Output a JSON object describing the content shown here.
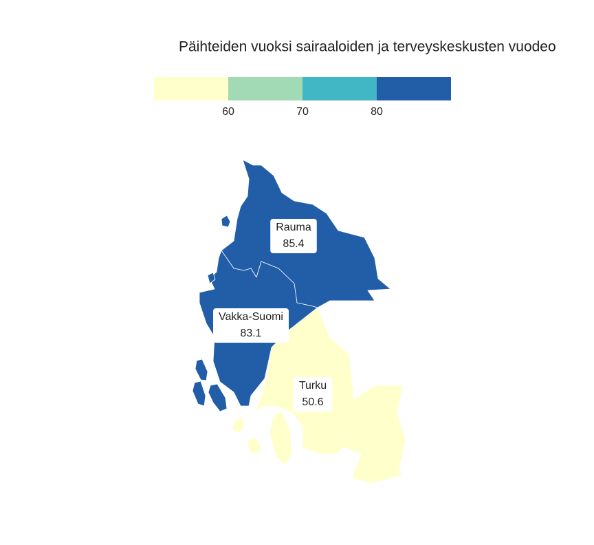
{
  "title": "Päihteiden vuoksi sairaaloiden ja terveyskeskusten vuodeo",
  "legend": {
    "range": [
      50,
      90
    ],
    "ticks": [
      60,
      70,
      80
    ],
    "colors": [
      "#ffffcc",
      "#a1dab4",
      "#41b6c4",
      "#225ea8"
    ]
  },
  "regions": [
    {
      "name": "Rauma",
      "value": 85.4,
      "color": "#225ea8"
    },
    {
      "name": "Vakka-Suomi",
      "value": 83.1,
      "color": "#225ea8"
    },
    {
      "name": "Turku",
      "value": 50.6,
      "color": "#ffffcc"
    }
  ]
}
